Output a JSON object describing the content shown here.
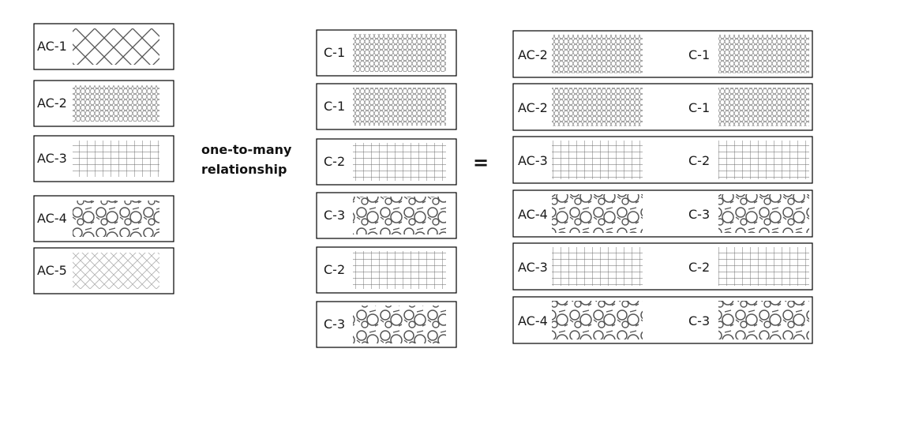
{
  "left_column": [
    {
      "label": "AC-1",
      "pattern": "herringbone"
    },
    {
      "label": "AC-2",
      "pattern": "honeycomb"
    },
    {
      "label": "AC-3",
      "pattern": "grid"
    },
    {
      "label": "AC-4",
      "pattern": "rings"
    },
    {
      "label": "AC-5",
      "pattern": "diamond"
    }
  ],
  "relation_text": [
    "one-to-many",
    "relationship"
  ],
  "middle_column": [
    {
      "label": "C-1",
      "pattern": "honeycomb"
    },
    {
      "label": "C-1",
      "pattern": "honeycomb"
    },
    {
      "label": "C-2",
      "pattern": "grid"
    },
    {
      "label": "C-3",
      "pattern": "rings"
    },
    {
      "label": "C-2",
      "pattern": "grid"
    },
    {
      "label": "C-3",
      "pattern": "rings"
    }
  ],
  "equals_sign": "=",
  "right_column": [
    {
      "left_label": "AC-2",
      "left_pattern": "honeycomb",
      "right_label": "C-1",
      "right_pattern": "honeycomb"
    },
    {
      "left_label": "AC-2",
      "left_pattern": "honeycomb",
      "right_label": "C-1",
      "right_pattern": "honeycomb"
    },
    {
      "left_label": "AC-3",
      "left_pattern": "grid",
      "right_label": "C-2",
      "right_pattern": "grid"
    },
    {
      "left_label": "AC-4",
      "left_pattern": "rings",
      "right_label": "C-3",
      "right_pattern": "rings"
    },
    {
      "left_label": "AC-3",
      "left_pattern": "grid",
      "right_label": "C-2",
      "right_pattern": "grid"
    },
    {
      "left_label": "AC-4",
      "left_pattern": "rings",
      "right_label": "C-3",
      "right_pattern": "rings"
    }
  ]
}
